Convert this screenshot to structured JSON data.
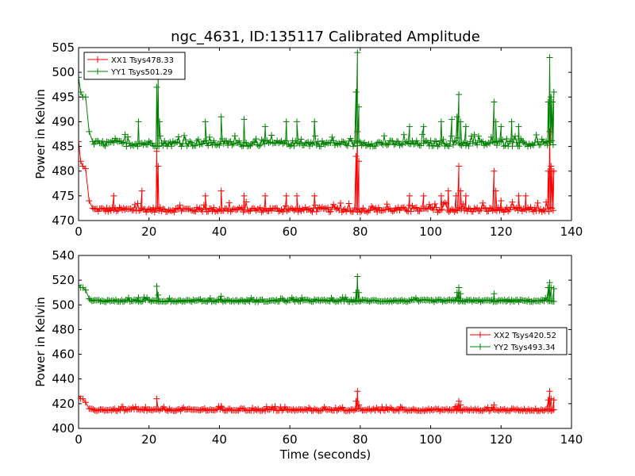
{
  "figure": {
    "title": "ngc_4631, ID:135117 Calibrated Amplitude",
    "xlabel": "Time (seconds)"
  },
  "chart_data": [
    {
      "type": "line",
      "id": "top",
      "title": "ngc_4631, ID:135117 Calibrated Amplitude",
      "xlabel": "",
      "ylabel": "Power in Kelvin",
      "xlim": [
        0,
        140
      ],
      "ylim": [
        470,
        505
      ],
      "xticks": [
        0,
        20,
        40,
        60,
        80,
        100,
        120,
        140
      ],
      "yticks": [
        470,
        475,
        480,
        485,
        490,
        495,
        500,
        505
      ],
      "grid": false,
      "legend_position": "upper-left",
      "marker": "plus",
      "series": [
        {
          "name": "XX1 Tsys478.33",
          "color": "#ff0000",
          "baseline": 472.2,
          "noise": 0.5,
          "edges": [
            [
              0,
              486
            ],
            [
              0.6,
              482
            ],
            [
              1.2,
              481
            ],
            [
              2,
              480.5
            ],
            [
              3,
              474
            ],
            [
              4,
              472.5
            ]
          ],
          "spikes": [
            [
              10,
              475
            ],
            [
              18,
              476
            ],
            [
              22.2,
              484
            ],
            [
              22.6,
              481
            ],
            [
              36,
              475
            ],
            [
              40.5,
              476
            ],
            [
              47,
              475
            ],
            [
              53,
              475
            ],
            [
              59,
              475
            ],
            [
              62,
              475
            ],
            [
              67,
              475
            ],
            [
              78.8,
              483
            ],
            [
              79.2,
              488
            ],
            [
              79.6,
              482
            ],
            [
              94,
              475
            ],
            [
              98,
              475
            ],
            [
              103,
              475
            ],
            [
              105,
              476
            ],
            [
              107.2,
              475
            ],
            [
              108,
              481
            ],
            [
              108.5,
              476
            ],
            [
              110,
              475
            ],
            [
              118,
              480
            ],
            [
              118.5,
              476
            ],
            [
              120,
              474
            ],
            [
              125,
              475
            ],
            [
              127,
              475
            ],
            [
              133.4,
              480
            ],
            [
              133.8,
              488
            ],
            [
              134.2,
              481
            ],
            [
              134.6,
              480
            ],
            [
              135,
              480
            ]
          ],
          "x_end": 135
        },
        {
          "name": "YY1 Tsys501.29",
          "color": "#008000",
          "baseline": 485.6,
          "noise": 0.6,
          "edges": [
            [
              0,
              499
            ],
            [
              0.6,
              496
            ],
            [
              1.2,
              495
            ],
            [
              2,
              495
            ],
            [
              3,
              488
            ],
            [
              4,
              486
            ]
          ],
          "spikes": [
            [
              17,
              490
            ],
            [
              22.2,
              497
            ],
            [
              22.6,
              499
            ],
            [
              23,
              490
            ],
            [
              36,
              490
            ],
            [
              40.5,
              491
            ],
            [
              47,
              490.5
            ],
            [
              53,
              489
            ],
            [
              59,
              490
            ],
            [
              62,
              490
            ],
            [
              67,
              490
            ],
            [
              78.8,
              496
            ],
            [
              79.2,
              504
            ],
            [
              79.6,
              493
            ],
            [
              94,
              489
            ],
            [
              98,
              489
            ],
            [
              103,
              490
            ],
            [
              106,
              490.5
            ],
            [
              107.5,
              491
            ],
            [
              108,
              495.5
            ],
            [
              108.5,
              490
            ],
            [
              110,
              489
            ],
            [
              118,
              494
            ],
            [
              118.5,
              490
            ],
            [
              120,
              489
            ],
            [
              123,
              490
            ],
            [
              125,
              489
            ],
            [
              133.4,
              494
            ],
            [
              133.8,
              503
            ],
            [
              134.2,
              495
            ],
            [
              134.6,
              494
            ],
            [
              135,
              496
            ]
          ],
          "x_end": 135
        }
      ]
    },
    {
      "type": "line",
      "id": "bottom",
      "title": "",
      "xlabel": "Time (seconds)",
      "ylabel": "Power in Kelvin",
      "xlim": [
        0,
        140
      ],
      "ylim": [
        400,
        540
      ],
      "xticks": [
        0,
        20,
        40,
        60,
        80,
        100,
        120,
        140
      ],
      "yticks": [
        400,
        420,
        440,
        460,
        480,
        500,
        520,
        540
      ],
      "grid": false,
      "legend_position": "center-right",
      "marker": "plus",
      "series": [
        {
          "name": "XX2 Tsys420.52",
          "color": "#ff0000",
          "baseline": 415,
          "noise": 0.9,
          "edges": [
            [
              0,
              426
            ],
            [
              0.6,
              424
            ],
            [
              1.2,
              424
            ],
            [
              2,
              421
            ],
            [
              3,
              416
            ]
          ],
          "spikes": [
            [
              22.2,
              424
            ],
            [
              40.5,
              418
            ],
            [
              78.8,
              422
            ],
            [
              79.2,
              430
            ],
            [
              79.6,
              419
            ],
            [
              107.5,
              418
            ],
            [
              108,
              422
            ],
            [
              108.5,
              419
            ],
            [
              118,
              419
            ],
            [
              133.4,
              423
            ],
            [
              133.8,
              430
            ],
            [
              134.2,
              424
            ],
            [
              135,
              423
            ]
          ],
          "x_end": 135
        },
        {
          "name": "YY2 Tsys493.34",
          "color": "#008000",
          "baseline": 503.3,
          "noise": 0.9,
          "edges": [
            [
              0,
              516
            ],
            [
              0.6,
              514
            ],
            [
              1.2,
              514
            ],
            [
              2,
              512
            ],
            [
              3,
              505
            ]
          ],
          "spikes": [
            [
              17,
              506
            ],
            [
              22.2,
              515
            ],
            [
              22.6,
              508
            ],
            [
              40.5,
              507
            ],
            [
              78.8,
              510
            ],
            [
              79.2,
              523
            ],
            [
              79.6,
              510
            ],
            [
              107.5,
              510
            ],
            [
              108,
              514
            ],
            [
              108.5,
              509
            ],
            [
              118,
              509
            ],
            [
              133.4,
              514
            ],
            [
              133.8,
              518
            ],
            [
              134.2,
              514
            ],
            [
              135,
              513
            ]
          ],
          "x_end": 135
        }
      ]
    }
  ]
}
